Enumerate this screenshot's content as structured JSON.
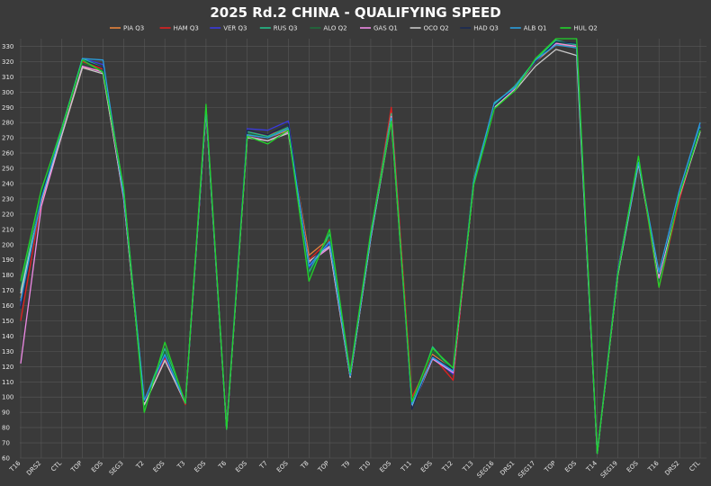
{
  "chart_data": {
    "type": "line",
    "title": "2025 Rd.2 CHINA - QUALIFYING SPEED",
    "xlabel": "",
    "ylabel": "",
    "ylim": [
      60,
      335
    ],
    "yticks": [
      60,
      70,
      80,
      90,
      100,
      110,
      120,
      130,
      140,
      150,
      160,
      170,
      180,
      190,
      200,
      210,
      220,
      230,
      240,
      250,
      260,
      270,
      280,
      290,
      300,
      310,
      320,
      330
    ],
    "grid": true,
    "legend": "top-center",
    "categories": [
      "T16",
      "DRS2",
      "CTL",
      "TOP",
      "EOS",
      "SEG3",
      "T2",
      "EOS",
      "T3",
      "EOS",
      "T6",
      "EOS",
      "T7",
      "EOS",
      "T8",
      "TOP",
      "T9",
      "T10",
      "EOS",
      "T11",
      "EOS",
      "T12",
      "T13",
      "SEG16",
      "DRS1",
      "SEG17",
      "TOP",
      "EOS",
      "T14",
      "SEG19",
      "EOS",
      "T16",
      "DRS2",
      "CTL"
    ],
    "series": [
      {
        "name": "PIA Q3",
        "color": "#e8833a",
        "values": [
          165,
          228,
          272,
          316,
          314,
          232,
          96,
          125,
          96,
          290,
          79,
          272,
          270,
          275,
          193,
          204,
          114,
          205,
          287,
          95,
          128,
          118,
          240,
          290,
          302,
          320,
          331,
          330,
          63,
          180,
          255,
          180,
          232,
          275
        ]
      },
      {
        "name": "HAM Q3",
        "color": "#e02020",
        "values": [
          150,
          229,
          274,
          320,
          315,
          231,
          97,
          126,
          95,
          288,
          79,
          274,
          272,
          276,
          190,
          203,
          115,
          206,
          290,
          100,
          127,
          111,
          241,
          290,
          302,
          321,
          332,
          331,
          63,
          183,
          256,
          172,
          230,
          276
        ]
      },
      {
        "name": "VER Q3",
        "color": "#3a3adf",
        "values": [
          160,
          233,
          276,
          322,
          318,
          234,
          97,
          127,
          96,
          289,
          79,
          276,
          275,
          281,
          185,
          201,
          114,
          207,
          285,
          94,
          126,
          115,
          242,
          292,
          303,
          320,
          333,
          331,
          63,
          184,
          255,
          180,
          236,
          278
        ]
      },
      {
        "name": "RUS Q3",
        "color": "#23c08a",
        "values": [
          170,
          235,
          277,
          322,
          316,
          236,
          97,
          132,
          96,
          290,
          79,
          274,
          271,
          277,
          182,
          207,
          115,
          207,
          286,
          94,
          133,
          117,
          243,
          292,
          304,
          321,
          334,
          331,
          63,
          183,
          256,
          178,
          234,
          277
        ]
      },
      {
        "name": "ALO Q2",
        "color": "#1e6e3c",
        "values": [
          175,
          234,
          276,
          319,
          314,
          233,
          93,
          130,
          96,
          289,
          79,
          273,
          270,
          276,
          180,
          205,
          114,
          206,
          284,
          96,
          130,
          118,
          242,
          291,
          303,
          320,
          333,
          330,
          63,
          182,
          255,
          176,
          233,
          276
        ]
      },
      {
        "name": "GAS Q1",
        "color": "#ee8ae6",
        "values": [
          122,
          225,
          272,
          317,
          313,
          230,
          95,
          124,
          96,
          288,
          79,
          271,
          268,
          274,
          188,
          198,
          113,
          204,
          284,
          93,
          125,
          116,
          240,
          290,
          302,
          320,
          332,
          330,
          63,
          181,
          254,
          178,
          232,
          274
        ]
      },
      {
        "name": "OCO Q2",
        "color": "#c8c8c8",
        "values": [
          168,
          229,
          272,
          316,
          312,
          231,
          95,
          124,
          96,
          288,
          79,
          270,
          268,
          273,
          189,
          199,
          113,
          204,
          282,
          94,
          126,
          117,
          240,
          290,
          301,
          317,
          328,
          324,
          63,
          180,
          253,
          180,
          233,
          274
        ]
      },
      {
        "name": "HAD Q3",
        "color": "#1a2a55",
        "values": [
          158,
          232,
          275,
          321,
          316,
          233,
          97,
          128,
          96,
          289,
          79,
          275,
          272,
          279,
          187,
          202,
          114,
          206,
          283,
          92,
          127,
          118,
          241,
          291,
          303,
          320,
          333,
          332,
          63,
          182,
          255,
          181,
          234,
          276
        ]
      },
      {
        "name": "ALB Q1",
        "color": "#2a9fe0",
        "values": [
          163,
          230,
          275,
          322,
          321,
          232,
          98,
          128,
          96,
          289,
          79,
          272,
          270,
          276,
          186,
          202,
          114,
          205,
          283,
          95,
          126,
          117,
          241,
          293,
          303,
          321,
          331,
          329,
          63,
          181,
          254,
          182,
          236,
          280
        ]
      },
      {
        "name": "HUL Q2",
        "color": "#22d32a",
        "values": [
          176,
          236,
          276,
          321,
          313,
          237,
          90,
          136,
          96,
          292,
          79,
          271,
          266,
          275,
          176,
          210,
          116,
          208,
          281,
          97,
          132,
          119,
          239,
          289,
          301,
          322,
          335,
          335,
          63,
          181,
          258,
          172,
          233,
          275
        ]
      }
    ]
  }
}
